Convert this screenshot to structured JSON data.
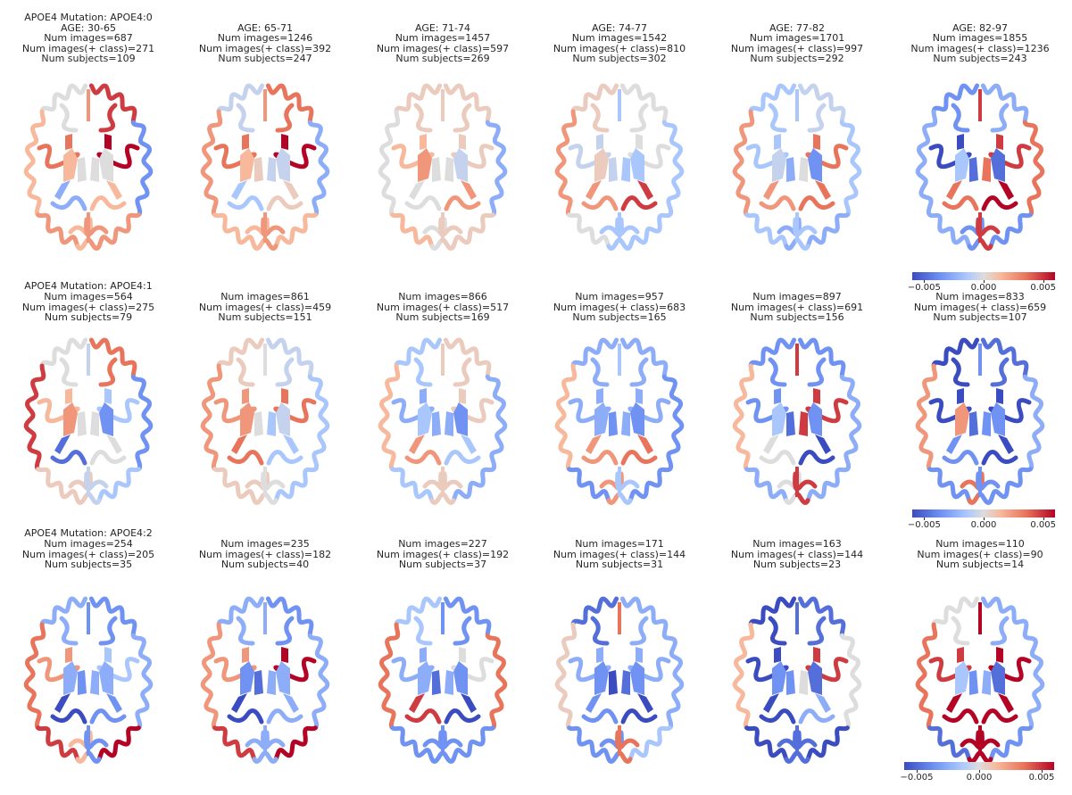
{
  "chart_data": {
    "type": "heatmap",
    "description_rows": "APOE4 mutation groups (rows) by age bins (columns); each panel is an axial brain slice colored by region value on a coolwarm scale",
    "color_scale": {
      "colormap": "coolwarm",
      "colors": [
        "#3b4cc0",
        "#6f92f3",
        "#aac7fd",
        "#dddddd",
        "#f7b89c",
        "#e7745b",
        "#b40426"
      ],
      "vmin": -0.006,
      "vmax": 0.006,
      "ticks": [
        "−0.005",
        "0.000",
        "0.005"
      ]
    },
    "rows": [
      {
        "mutation_label": "APOE4 Mutation: APOE4:0",
        "panels": [
          {
            "age": "AGE: 30-65",
            "images": "Num images=687",
            "pos": "Num images(+ class)=271",
            "subjects": "Num subjects=109"
          },
          {
            "age": "AGE: 65-71",
            "images": "Num images=1246",
            "pos": "Num images(+ class)=392",
            "subjects": "Num subjects=247"
          },
          {
            "age": "AGE: 71-74",
            "images": "Num images=1457",
            "pos": "Num images(+ class)=597",
            "subjects": "Num subjects=269"
          },
          {
            "age": "AGE: 74-77",
            "images": "Num images=1542",
            "pos": "Num images(+ class)=810",
            "subjects": "Num subjects=302"
          },
          {
            "age": "AGE: 77-82",
            "images": "Num images=1701",
            "pos": "Num images(+ class)=997",
            "subjects": "Num subjects=292"
          },
          {
            "age": "AGE: 82-97",
            "images": "Num images=1855",
            "pos": "Num images(+ class)=1236",
            "subjects": "Num subjects=243"
          }
        ]
      },
      {
        "mutation_label": "APOE4 Mutation: APOE4:1",
        "panels": [
          {
            "images": "Num images=564",
            "pos": "Num images(+ class)=275",
            "subjects": "Num subjects=79"
          },
          {
            "images": "Num images=861",
            "pos": "Num images(+ class)=459",
            "subjects": "Num subjects=151"
          },
          {
            "images": "Num images=866",
            "pos": "Num images(+ class)=517",
            "subjects": "Num subjects=169"
          },
          {
            "images": "Num images=957",
            "pos": "Num images(+ class)=683",
            "subjects": "Num subjects=165"
          },
          {
            "images": "Num images=897",
            "pos": "Num images(+ class)=691",
            "subjects": "Num subjects=156"
          },
          {
            "images": "Num images=833",
            "pos": "Num images(+ class)=659",
            "subjects": "Num subjects=107"
          }
        ]
      },
      {
        "mutation_label": "APOE4 Mutation: APOE4:2",
        "panels": [
          {
            "images": "Num images=254",
            "pos": "Num images(+ class)=205",
            "subjects": "Num subjects=35"
          },
          {
            "images": "Num images=235",
            "pos": "Num images(+ class)=182",
            "subjects": "Num subjects=40"
          },
          {
            "images": "Num images=227",
            "pos": "Num images(+ class)=192",
            "subjects": "Num subjects=37"
          },
          {
            "images": "Num images=171",
            "pos": "Num images(+ class)=144",
            "subjects": "Num subjects=31"
          },
          {
            "images": "Num images=163",
            "pos": "Num images(+ class)=144",
            "subjects": "Num subjects=23"
          },
          {
            "images": "Num images=110",
            "pos": "Num images(+ class)=90",
            "subjects": "Num subjects=14"
          }
        ]
      }
    ],
    "region_values": [
      [
        {
          "lf": 0.0,
          "rf": 0.005,
          "li": 0.004,
          "ri": 0.006,
          "lt": 0.002,
          "rt": -0.004,
          "lp": 0.003,
          "rp": 0.003,
          "lc": -0.003,
          "rc": 0.002,
          "lpu": 0.002,
          "rpu": 0.0,
          "lth": 0.0,
          "rth": 0.0,
          "lo": 0.002,
          "ro": 0.003
        },
        {
          "lf": -0.001,
          "rf": 0.004,
          "li": 0.004,
          "ri": 0.006,
          "lt": 0.003,
          "rt": -0.003,
          "lp": 0.002,
          "rp": 0.002,
          "lc": -0.002,
          "rc": 0.001,
          "lpu": 0.002,
          "rpu": -0.001,
          "lth": 0.001,
          "rth": -0.001,
          "lo": 0.002,
          "ro": 0.003
        },
        {
          "lf": 0.001,
          "rf": 0.001,
          "li": 0.002,
          "ri": 0.001,
          "lt": 0.0,
          "rt": -0.003,
          "lp": 0.002,
          "rp": 0.001,
          "lc": 0.0,
          "rc": 0.003,
          "lpu": 0.003,
          "rpu": -0.001,
          "lth": 0.0,
          "rth": 0.0,
          "lo": 0.0,
          "ro": 0.001
        },
        {
          "lf": 0.001,
          "rf": 0.0,
          "li": -0.001,
          "ri": 0.0,
          "lt": 0.003,
          "rt": -0.002,
          "lp": 0.0,
          "rp": -0.002,
          "lc": 0.003,
          "rc": 0.005,
          "lpu": 0.001,
          "rpu": -0.002,
          "lth": -0.001,
          "rth": -0.002,
          "lo": -0.002,
          "ro": -0.002
        },
        {
          "lf": -0.002,
          "rf": -0.001,
          "li": -0.002,
          "ri": 0.004,
          "lt": 0.003,
          "rt": -0.002,
          "lp": -0.002,
          "rp": -0.003,
          "lc": 0.003,
          "rc": 0.004,
          "lpu": -0.001,
          "rpu": -0.004,
          "lth": -0.003,
          "rth": 0.0,
          "lo": -0.003,
          "ro": -0.002
        },
        {
          "lf": -0.004,
          "rf": -0.003,
          "li": -0.006,
          "ri": 0.005,
          "lt": -0.003,
          "rt": 0.004,
          "lp": -0.003,
          "rp": -0.004,
          "lc": 0.004,
          "rc": 0.006,
          "lpu": -0.002,
          "rpu": -0.005,
          "lth": -0.005,
          "rth": 0.004,
          "lo": -0.004,
          "ro": 0.005
        }
      ],
      [
        {
          "lf": 0.0,
          "rf": 0.004,
          "li": 0.002,
          "ri": -0.002,
          "lt": 0.005,
          "rt": -0.004,
          "lp": 0.001,
          "rp": -0.002,
          "lc": -0.005,
          "rc": 0.0,
          "lpu": 0.003,
          "rpu": -0.004,
          "lth": 0.0,
          "rth": 0.0,
          "lo": 0.001,
          "ro": -0.001
        },
        {
          "lf": 0.001,
          "rf": -0.001,
          "li": 0.003,
          "ri": 0.004,
          "lt": 0.003,
          "rt": -0.002,
          "lp": 0.001,
          "rp": -0.002,
          "lc": 0.004,
          "rc": -0.002,
          "lpu": 0.003,
          "rpu": -0.001,
          "lth": 0.0,
          "rth": -0.002,
          "lo": 0.001,
          "ro": 0.0
        },
        {
          "lf": -0.002,
          "rf": 0.001,
          "li": -0.003,
          "ri": 0.001,
          "lt": 0.002,
          "rt": -0.003,
          "lp": -0.002,
          "rp": -0.003,
          "lc": 0.003,
          "rc": -0.002,
          "lpu": -0.002,
          "rpu": -0.004,
          "lth": -0.003,
          "rth": -0.003,
          "lo": 0.001,
          "ro": 0.001
        },
        {
          "lf": -0.003,
          "rf": -0.003,
          "li": -0.003,
          "ri": -0.003,
          "lt": 0.002,
          "rt": -0.004,
          "lp": -0.004,
          "rp": -0.004,
          "lc": 0.003,
          "rc": 0.004,
          "lpu": -0.003,
          "rpu": -0.004,
          "lth": -0.004,
          "rth": -0.003,
          "lo": 0.003,
          "ro": -0.002
        },
        {
          "lf": -0.004,
          "rf": -0.004,
          "li": -0.004,
          "ri": 0.005,
          "lt": 0.002,
          "rt": -0.003,
          "lp": -0.003,
          "rp": -0.003,
          "lc": 0.0,
          "rc": -0.006,
          "lpu": -0.002,
          "rpu": -0.004,
          "lth": -0.005,
          "rth": 0.005,
          "lo": 0.0,
          "ro": 0.005
        },
        {
          "lf": -0.006,
          "rf": -0.005,
          "li": -0.006,
          "ri": -0.006,
          "lt": 0.003,
          "rt": -0.003,
          "lp": -0.004,
          "rp": -0.004,
          "lc": -0.004,
          "rc": -0.006,
          "lpu": 0.003,
          "rpu": -0.004,
          "lth": -0.005,
          "rth": -0.004,
          "lo": 0.004,
          "ro": -0.004
        }
      ],
      [
        {
          "lf": -0.003,
          "rf": -0.004,
          "li": 0.003,
          "ri": -0.002,
          "lt": 0.004,
          "rt": -0.003,
          "lp": 0.005,
          "rp": 0.006,
          "lc": -0.006,
          "rc": -0.004,
          "lpu": -0.003,
          "rpu": -0.003,
          "lth": -0.004,
          "rth": -0.003,
          "lo": 0.002,
          "ro": -0.004
        },
        {
          "lf": -0.003,
          "rf": -0.004,
          "li": 0.003,
          "ri": 0.006,
          "lt": 0.003,
          "rt": -0.003,
          "lp": 0.005,
          "rp": 0.006,
          "lc": -0.006,
          "rc": -0.003,
          "lpu": -0.004,
          "rpu": -0.003,
          "lth": -0.005,
          "rth": -0.003,
          "lo": -0.003,
          "ro": -0.003
        },
        {
          "lf": -0.002,
          "rf": -0.004,
          "li": -0.003,
          "ri": 0.0,
          "lt": 0.004,
          "rt": 0.004,
          "lp": -0.004,
          "rp": -0.004,
          "lc": 0.005,
          "rc": -0.006,
          "lpu": -0.003,
          "rpu": -0.004,
          "lth": -0.005,
          "rth": -0.003,
          "lo": -0.004,
          "ro": -0.004
        },
        {
          "lf": -0.005,
          "rf": -0.003,
          "li": -0.003,
          "ri": -0.003,
          "lt": 0.001,
          "rt": -0.003,
          "lp": -0.004,
          "rp": -0.002,
          "lc": -0.004,
          "rc": -0.006,
          "lpu": -0.004,
          "rpu": -0.004,
          "lth": -0.006,
          "rth": -0.005,
          "lo": -0.004,
          "ro": 0.004
        },
        {
          "lf": -0.006,
          "rf": -0.005,
          "li": -0.006,
          "ri": 0.005,
          "lt": 0.002,
          "rt": 0.0,
          "lp": -0.006,
          "rp": -0.006,
          "lc": -0.006,
          "rc": -0.003,
          "lpu": -0.004,
          "rpu": -0.005,
          "lth": -0.004,
          "rth": 0.0,
          "lo": -0.005,
          "ro": -0.005
        },
        {
          "lf": 0.0,
          "rf": -0.003,
          "li": 0.005,
          "ri": 0.006,
          "lt": 0.004,
          "rt": -0.003,
          "lp": -0.005,
          "rp": -0.004,
          "lc": 0.006,
          "rc": 0.006,
          "lpu": -0.002,
          "rpu": -0.005,
          "lth": -0.004,
          "rth": -0.003,
          "lo": 0.006,
          "ro": 0.006
        }
      ]
    ]
  }
}
